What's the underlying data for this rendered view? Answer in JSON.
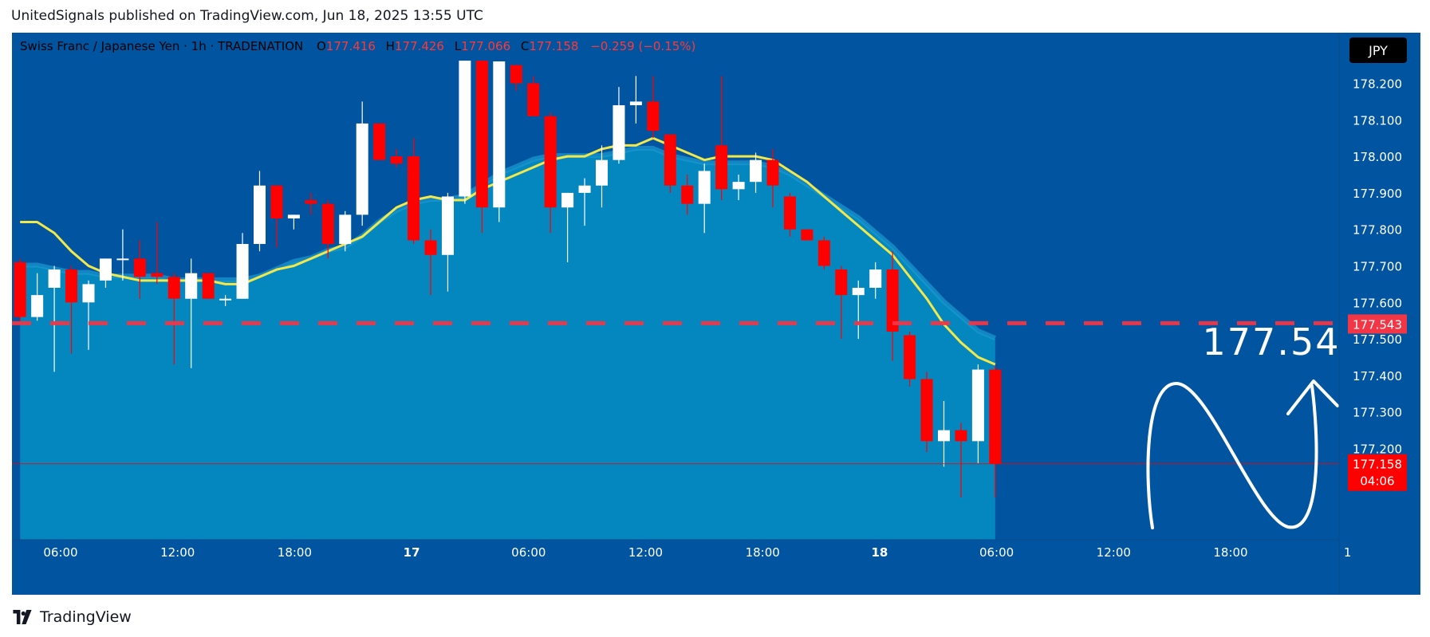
{
  "header": {
    "published": "UnitedSignals published on TradingView.com, Jun 18, 2025 13:55 UTC"
  },
  "legend": {
    "symbol": "Swiss Franc  / Japanese Yen · 1h · TRADENATION",
    "o_label": "O",
    "o": "177.416",
    "h_label": "H",
    "h": "177.426",
    "l_label": "L",
    "l": "177.066",
    "c_label": "C",
    "c": "177.158",
    "change": "−0.259 (−0.15%)"
  },
  "currency_button": "JPY",
  "price_axis": [
    "178.200",
    "178.100",
    "178.000",
    "177.900",
    "177.800",
    "177.700",
    "177.600",
    "177.500",
    "177.400",
    "177.300",
    "177.200"
  ],
  "time_axis": [
    {
      "label": "06:00",
      "bold": false
    },
    {
      "label": "12:00",
      "bold": false
    },
    {
      "label": "18:00",
      "bold": false
    },
    {
      "label": "17",
      "bold": true
    },
    {
      "label": "06:00",
      "bold": false
    },
    {
      "label": "12:00",
      "bold": false
    },
    {
      "label": "18:00",
      "bold": false
    },
    {
      "label": "18",
      "bold": true
    },
    {
      "label": "06:00",
      "bold": false
    },
    {
      "label": "12:00",
      "bold": false
    },
    {
      "label": "18:00",
      "bold": false
    },
    {
      "label": "1",
      "bold": false
    }
  ],
  "target": {
    "price": "177.54",
    "badge": "177.543",
    "value": 177.543
  },
  "last_price": {
    "price": "177.158",
    "countdown": "04:06",
    "value": 177.158
  },
  "footer": {
    "brand": "TradingView"
  },
  "colors": {
    "bg": "#0054a0",
    "area": "#0487be",
    "up": "#ffffff",
    "down": "#ff0000",
    "ma": "#f2e84a",
    "target_line": "#f23645",
    "last_price": "#ff0000"
  },
  "chart_data": {
    "type": "candlestick",
    "interval": "1h",
    "ylim": [
      177.066,
      178.262
    ],
    "candles": [
      {
        "o": 177.71,
        "h": 177.72,
        "l": 177.55,
        "c": 177.56
      },
      {
        "o": 177.56,
        "h": 177.68,
        "l": 177.55,
        "c": 177.62
      },
      {
        "o": 177.64,
        "h": 177.7,
        "l": 177.41,
        "c": 177.69
      },
      {
        "o": 177.69,
        "h": 177.7,
        "l": 177.46,
        "c": 177.6
      },
      {
        "o": 177.6,
        "h": 177.66,
        "l": 177.47,
        "c": 177.65
      },
      {
        "o": 177.66,
        "h": 177.72,
        "l": 177.64,
        "c": 177.72
      },
      {
        "o": 177.72,
        "h": 177.8,
        "l": 177.66,
        "c": 177.72
      },
      {
        "o": 177.72,
        "h": 177.77,
        "l": 177.61,
        "c": 177.67
      },
      {
        "o": 177.68,
        "h": 177.82,
        "l": 177.65,
        "c": 177.67
      },
      {
        "o": 177.67,
        "h": 177.68,
        "l": 177.43,
        "c": 177.61
      },
      {
        "o": 177.61,
        "h": 177.72,
        "l": 177.42,
        "c": 177.68
      },
      {
        "o": 177.68,
        "h": 177.68,
        "l": 177.61,
        "c": 177.61
      },
      {
        "o": 177.61,
        "h": 177.62,
        "l": 177.59,
        "c": 177.61
      },
      {
        "o": 177.61,
        "h": 177.79,
        "l": 177.61,
        "c": 177.76
      },
      {
        "o": 177.76,
        "h": 177.96,
        "l": 177.74,
        "c": 177.92
      },
      {
        "o": 177.92,
        "h": 177.92,
        "l": 177.75,
        "c": 177.83
      },
      {
        "o": 177.83,
        "h": 177.84,
        "l": 177.8,
        "c": 177.84
      },
      {
        "o": 177.88,
        "h": 177.9,
        "l": 177.84,
        "c": 177.87
      },
      {
        "o": 177.87,
        "h": 177.88,
        "l": 177.72,
        "c": 177.76
      },
      {
        "o": 177.76,
        "h": 177.85,
        "l": 177.74,
        "c": 177.84
      },
      {
        "o": 177.84,
        "h": 178.15,
        "l": 177.81,
        "c": 178.09
      },
      {
        "o": 178.09,
        "h": 178.09,
        "l": 177.99,
        "c": 177.99
      },
      {
        "o": 178.0,
        "h": 178.02,
        "l": 177.97,
        "c": 177.98
      },
      {
        "o": 178.0,
        "h": 178.05,
        "l": 177.76,
        "c": 177.77
      },
      {
        "o": 177.77,
        "h": 177.8,
        "l": 177.62,
        "c": 177.73
      },
      {
        "o": 177.73,
        "h": 177.9,
        "l": 177.63,
        "c": 177.89
      },
      {
        "o": 177.89,
        "h": 178.262,
        "l": 177.87,
        "c": 178.262
      },
      {
        "o": 178.262,
        "h": 178.262,
        "l": 177.79,
        "c": 177.86
      },
      {
        "o": 177.86,
        "h": 178.26,
        "l": 177.82,
        "c": 178.26
      },
      {
        "o": 178.25,
        "h": 178.25,
        "l": 178.18,
        "c": 178.2
      },
      {
        "o": 178.2,
        "h": 178.22,
        "l": 178.11,
        "c": 178.11
      },
      {
        "o": 178.11,
        "h": 178.12,
        "l": 177.79,
        "c": 177.86
      },
      {
        "o": 177.86,
        "h": 177.9,
        "l": 177.71,
        "c": 177.9
      },
      {
        "o": 177.9,
        "h": 177.94,
        "l": 177.81,
        "c": 177.92
      },
      {
        "o": 177.92,
        "h": 178.03,
        "l": 177.86,
        "c": 177.99
      },
      {
        "o": 177.99,
        "h": 178.19,
        "l": 177.98,
        "c": 178.14
      },
      {
        "o": 178.14,
        "h": 178.22,
        "l": 178.09,
        "c": 178.15
      },
      {
        "o": 178.15,
        "h": 178.22,
        "l": 178.05,
        "c": 178.07
      },
      {
        "o": 178.06,
        "h": 178.06,
        "l": 177.9,
        "c": 177.92
      },
      {
        "o": 177.92,
        "h": 177.95,
        "l": 177.84,
        "c": 177.87
      },
      {
        "o": 177.87,
        "h": 177.98,
        "l": 177.79,
        "c": 177.96
      },
      {
        "o": 178.03,
        "h": 178.22,
        "l": 177.88,
        "c": 177.91
      },
      {
        "o": 177.91,
        "h": 177.95,
        "l": 177.88,
        "c": 177.93
      },
      {
        "o": 177.93,
        "h": 178.01,
        "l": 177.9,
        "c": 177.99
      },
      {
        "o": 177.99,
        "h": 178.02,
        "l": 177.86,
        "c": 177.92
      },
      {
        "o": 177.89,
        "h": 177.9,
        "l": 177.78,
        "c": 177.8
      },
      {
        "o": 177.8,
        "h": 177.8,
        "l": 177.77,
        "c": 177.77
      },
      {
        "o": 177.77,
        "h": 177.78,
        "l": 177.69,
        "c": 177.7
      },
      {
        "o": 177.69,
        "h": 177.7,
        "l": 177.5,
        "c": 177.62
      },
      {
        "o": 177.62,
        "h": 177.66,
        "l": 177.5,
        "c": 177.64
      },
      {
        "o": 177.64,
        "h": 177.71,
        "l": 177.61,
        "c": 177.69
      },
      {
        "o": 177.69,
        "h": 177.74,
        "l": 177.44,
        "c": 177.52
      },
      {
        "o": 177.51,
        "h": 177.52,
        "l": 177.37,
        "c": 177.39
      },
      {
        "o": 177.39,
        "h": 177.41,
        "l": 177.19,
        "c": 177.22
      },
      {
        "o": 177.22,
        "h": 177.33,
        "l": 177.15,
        "c": 177.25
      },
      {
        "o": 177.25,
        "h": 177.27,
        "l": 177.066,
        "c": 177.22
      },
      {
        "o": 177.22,
        "h": 177.43,
        "l": 177.16,
        "c": 177.416
      },
      {
        "o": 177.416,
        "h": 177.426,
        "l": 177.066,
        "c": 177.158
      }
    ],
    "ema": [
      177.82,
      177.82,
      177.79,
      177.74,
      177.7,
      177.68,
      177.67,
      177.66,
      177.66,
      177.66,
      177.66,
      177.66,
      177.65,
      177.65,
      177.67,
      177.69,
      177.7,
      177.72,
      177.74,
      177.76,
      177.78,
      177.82,
      177.86,
      177.88,
      177.89,
      177.88,
      177.88,
      177.91,
      177.93,
      177.95,
      177.97,
      177.99,
      178.0,
      178.0,
      178.02,
      178.03,
      178.03,
      178.05,
      178.03,
      178.01,
      177.99,
      178.0,
      178.0,
      178.0,
      177.99,
      177.96,
      177.93,
      177.89,
      177.85,
      177.81,
      177.77,
      177.73,
      177.67,
      177.61,
      177.54,
      177.49,
      177.45,
      177.43
    ],
    "baseline": [
      177.7,
      177.7,
      177.69,
      177.68,
      177.68,
      177.67,
      177.67,
      177.67,
      177.67,
      177.66,
      177.66,
      177.66,
      177.66,
      177.66,
      177.67,
      177.69,
      177.71,
      177.72,
      177.74,
      177.75,
      177.78,
      177.82,
      177.85,
      177.87,
      177.88,
      177.88,
      177.89,
      177.92,
      177.95,
      177.97,
      177.99,
      178.0,
      178.0,
      178.0,
      178.0,
      178.01,
      178.02,
      178.02,
      178.0,
      177.99,
      177.98,
      177.98,
      177.98,
      177.98,
      177.97,
      177.95,
      177.92,
      177.89,
      177.86,
      177.83,
      177.79,
      177.75,
      177.7,
      177.65,
      177.6,
      177.56,
      177.52,
      177.5
    ]
  }
}
